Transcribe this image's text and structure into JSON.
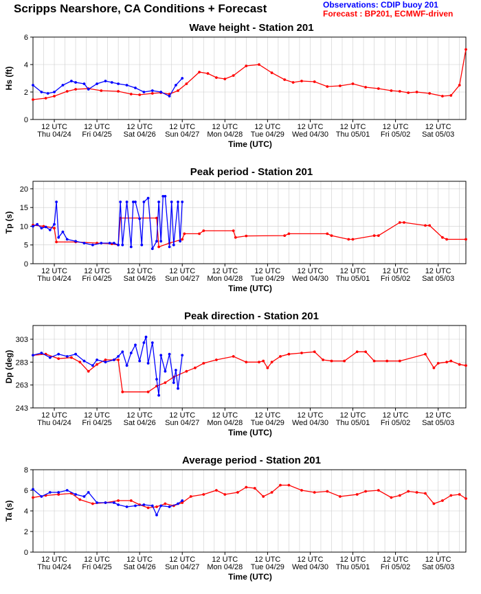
{
  "page_title": "Scripps Nearshore, CA Conditions + Forecast",
  "legend": {
    "observations": "Observations: CDIP buoy 201",
    "forecast": "Forecast : BP201, ECMWF-driven"
  },
  "colors": {
    "observations": "#0000ff",
    "forecast": "#ff0000",
    "grid": "#cccccc"
  },
  "x_axis": {
    "label": "Time (UTC)",
    "tick_line1": [
      "12 UTC",
      "12 UTC",
      "12 UTC",
      "12 UTC",
      "12 UTC",
      "12 UTC",
      "12 UTC",
      "12 UTC",
      "12 UTC",
      "12 UTC"
    ],
    "tick_line2": [
      "Thu 04/24",
      "Fri 04/25",
      "Sat 04/26",
      "Sun 04/27",
      "Mon 04/28",
      "Tue 04/29",
      "Wed 04/30",
      "Thu 05/01",
      "Fri 05/02",
      "Sat 05/03"
    ],
    "range_days": [
      0,
      10.15
    ]
  },
  "chart_data": [
    {
      "type": "line",
      "title": "Wave height - Station 201",
      "ylabel": "Hs (ft)",
      "ylim": [
        0,
        6
      ],
      "yticks": [
        0,
        2,
        4,
        6
      ],
      "grid": true,
      "series": [
        {
          "name": "Observations: CDIP buoy 201",
          "x": [
            0,
            0.2,
            0.35,
            0.5,
            0.7,
            0.9,
            1.0,
            1.2,
            1.3,
            1.5,
            1.7,
            1.85,
            2.0,
            2.2,
            2.4,
            2.6,
            2.8,
            3.0,
            3.2,
            3.35,
            3.5
          ],
          "y": [
            2.5,
            2.0,
            1.9,
            2.0,
            2.5,
            2.8,
            2.7,
            2.6,
            2.2,
            2.6,
            2.8,
            2.7,
            2.6,
            2.5,
            2.3,
            2.0,
            2.1,
            2.0,
            1.7,
            2.5,
            3.0
          ]
        },
        {
          "name": "Forecast : BP201, ECMWF-driven",
          "x": [
            0,
            0.3,
            0.5,
            0.8,
            1.0,
            1.3,
            1.6,
            2.0,
            2.3,
            2.5,
            2.8,
            3.0,
            3.2,
            3.4,
            3.6,
            3.9,
            4.1,
            4.3,
            4.5,
            4.7,
            5.0,
            5.3,
            5.6,
            5.9,
            6.1,
            6.3,
            6.6,
            6.9,
            7.2,
            7.5,
            7.8,
            8.1,
            8.4,
            8.6,
            8.8,
            9.0,
            9.3,
            9.6,
            9.8,
            10.0,
            10.15
          ],
          "y": [
            1.45,
            1.55,
            1.7,
            2.05,
            2.2,
            2.25,
            2.1,
            2.05,
            1.85,
            1.8,
            1.9,
            1.95,
            1.85,
            2.1,
            2.6,
            3.45,
            3.35,
            3.05,
            2.95,
            3.2,
            3.9,
            4.0,
            3.4,
            2.9,
            2.7,
            2.8,
            2.75,
            2.4,
            2.45,
            2.6,
            2.35,
            2.25,
            2.1,
            2.05,
            1.95,
            2.0,
            1.9,
            1.7,
            1.75,
            2.5,
            5.1
          ]
        }
      ]
    },
    {
      "type": "line",
      "title": "Peak period - Station 201",
      "ylabel": "Tp (s)",
      "ylim": [
        0,
        22
      ],
      "yticks": [
        0,
        5,
        10,
        15,
        20
      ],
      "grid": true,
      "series": [
        {
          "name": "Observations: CDIP buoy 201",
          "x": [
            0,
            0.1,
            0.2,
            0.3,
            0.4,
            0.5,
            0.55,
            0.6,
            0.7,
            0.8,
            1.0,
            1.2,
            1.4,
            1.6,
            1.8,
            1.9,
            2.0,
            2.05,
            2.1,
            2.2,
            2.3,
            2.35,
            2.4,
            2.5,
            2.55,
            2.6,
            2.7,
            2.8,
            2.9,
            2.95,
            3.0,
            3.05,
            3.1,
            3.2,
            3.25,
            3.3,
            3.4,
            3.45,
            3.5
          ],
          "y": [
            10,
            10.5,
            9.5,
            9.8,
            9.0,
            10.5,
            16.5,
            7.0,
            8.5,
            6.5,
            6.0,
            5.5,
            5.0,
            5.5,
            5.5,
            5.5,
            5.0,
            16.5,
            5.0,
            16.5,
            4.5,
            16.5,
            16.5,
            12.0,
            5.0,
            16.5,
            17.5,
            4.0,
            6.0,
            16.5,
            6.0,
            18.0,
            18.0,
            4.5,
            16.5,
            5.0,
            16.5,
            6.0,
            16.5
          ]
        },
        {
          "name": "Forecast : BP201, ECMWF-driven",
          "x": [
            0,
            0.25,
            0.5,
            0.55,
            1.0,
            1.5,
            1.85,
            2.0,
            2.05,
            2.9,
            2.95,
            3.2,
            3.5,
            3.55,
            3.9,
            4.0,
            4.7,
            4.75,
            5.0,
            5.9,
            6.0,
            6.9,
            7.0,
            7.4,
            7.5,
            8.0,
            8.1,
            8.6,
            8.7,
            9.2,
            9.3,
            9.6,
            9.7,
            10.15
          ],
          "y": [
            10.3,
            10.0,
            9.5,
            5.8,
            5.8,
            5.5,
            5.3,
            5.0,
            12.2,
            12.2,
            4.5,
            5.5,
            6.5,
            8.0,
            8.0,
            8.8,
            8.8,
            7.0,
            7.4,
            7.5,
            8.0,
            8.0,
            7.5,
            6.5,
            6.5,
            7.5,
            7.5,
            11.0,
            11.0,
            10.2,
            10.2,
            7.0,
            6.5,
            6.5
          ]
        }
      ]
    },
    {
      "type": "line",
      "title": "Peak direction - Station 201",
      "ylabel": "Dp (deg)",
      "ylim": [
        243,
        315
      ],
      "yticks": [
        243,
        263,
        283,
        303
      ],
      "grid": true,
      "series": [
        {
          "name": "Observations: CDIP buoy 201",
          "x": [
            0,
            0.2,
            0.4,
            0.6,
            0.8,
            1.0,
            1.2,
            1.4,
            1.5,
            1.7,
            1.9,
            2.0,
            2.1,
            2.2,
            2.3,
            2.4,
            2.5,
            2.6,
            2.65,
            2.7,
            2.8,
            2.9,
            2.95,
            3.0,
            3.1,
            3.2,
            3.3,
            3.35,
            3.4,
            3.5
          ],
          "y": [
            289,
            291,
            287,
            290,
            288,
            290,
            284,
            280,
            285,
            283,
            285,
            288,
            292,
            280,
            291,
            298,
            284,
            300,
            305,
            282,
            300,
            268,
            254,
            289,
            275,
            290,
            265,
            276,
            260,
            289
          ]
        },
        {
          "name": "Forecast : BP201, ECMWF-driven",
          "x": [
            0,
            0.3,
            0.6,
            0.9,
            1.1,
            1.3,
            1.5,
            1.7,
            1.9,
            2.0,
            2.1,
            2.7,
            2.9,
            3.1,
            3.3,
            3.6,
            3.8,
            4.0,
            4.3,
            4.7,
            5.0,
            5.3,
            5.4,
            5.5,
            5.6,
            5.8,
            6.0,
            6.3,
            6.6,
            6.8,
            7.0,
            7.3,
            7.6,
            7.8,
            8.0,
            8.3,
            8.6,
            9.2,
            9.4,
            9.5,
            9.7,
            9.8,
            10.0,
            10.15
          ],
          "y": [
            289,
            290,
            286,
            287,
            283,
            275,
            281,
            285,
            285,
            285,
            257,
            257,
            262,
            265,
            270,
            275,
            278,
            282,
            285,
            288,
            283,
            283,
            284,
            278,
            283,
            288,
            290,
            291,
            292,
            285,
            284,
            284,
            292,
            292,
            284,
            284,
            284,
            290,
            278,
            282,
            283,
            284,
            281,
            280
          ]
        }
      ]
    },
    {
      "type": "line",
      "title": "Average period - Station 201",
      "ylabel": "Ta (s)",
      "ylim": [
        0,
        8
      ],
      "yticks": [
        0,
        2,
        4,
        6,
        8
      ],
      "grid": true,
      "series": [
        {
          "name": "Observations: CDIP buoy 201",
          "x": [
            0,
            0.2,
            0.4,
            0.6,
            0.8,
            1.0,
            1.2,
            1.3,
            1.5,
            1.7,
            1.9,
            2.0,
            2.2,
            2.4,
            2.6,
            2.8,
            2.9,
            3.0,
            3.2,
            3.4,
            3.5
          ],
          "y": [
            6.1,
            5.4,
            5.8,
            5.8,
            6.0,
            5.6,
            5.4,
            5.8,
            4.8,
            4.8,
            4.8,
            4.6,
            4.4,
            4.5,
            4.6,
            4.5,
            3.6,
            4.5,
            4.4,
            4.7,
            5.0
          ]
        },
        {
          "name": "Forecast : BP201, ECMWF-driven",
          "x": [
            0,
            0.3,
            0.6,
            0.9,
            1.1,
            1.4,
            1.7,
            2.0,
            2.3,
            2.5,
            2.7,
            2.9,
            3.1,
            3.3,
            3.5,
            3.7,
            4.0,
            4.3,
            4.5,
            4.8,
            5.0,
            5.2,
            5.4,
            5.6,
            5.8,
            6.0,
            6.3,
            6.6,
            6.9,
            7.2,
            7.6,
            7.8,
            8.1,
            8.4,
            8.6,
            8.8,
            9.0,
            9.2,
            9.4,
            9.6,
            9.8,
            10.0,
            10.15
          ],
          "y": [
            5.3,
            5.5,
            5.6,
            5.7,
            5.1,
            4.7,
            4.8,
            5.0,
            5.0,
            4.6,
            4.3,
            4.4,
            4.7,
            4.5,
            4.8,
            5.4,
            5.6,
            6.0,
            5.6,
            5.8,
            6.3,
            6.2,
            5.4,
            5.8,
            6.5,
            6.5,
            6.0,
            5.8,
            5.9,
            5.4,
            5.6,
            5.9,
            6.0,
            5.3,
            5.5,
            5.9,
            5.8,
            5.7,
            4.7,
            5.0,
            5.5,
            5.6,
            5.2
          ]
        }
      ]
    }
  ]
}
